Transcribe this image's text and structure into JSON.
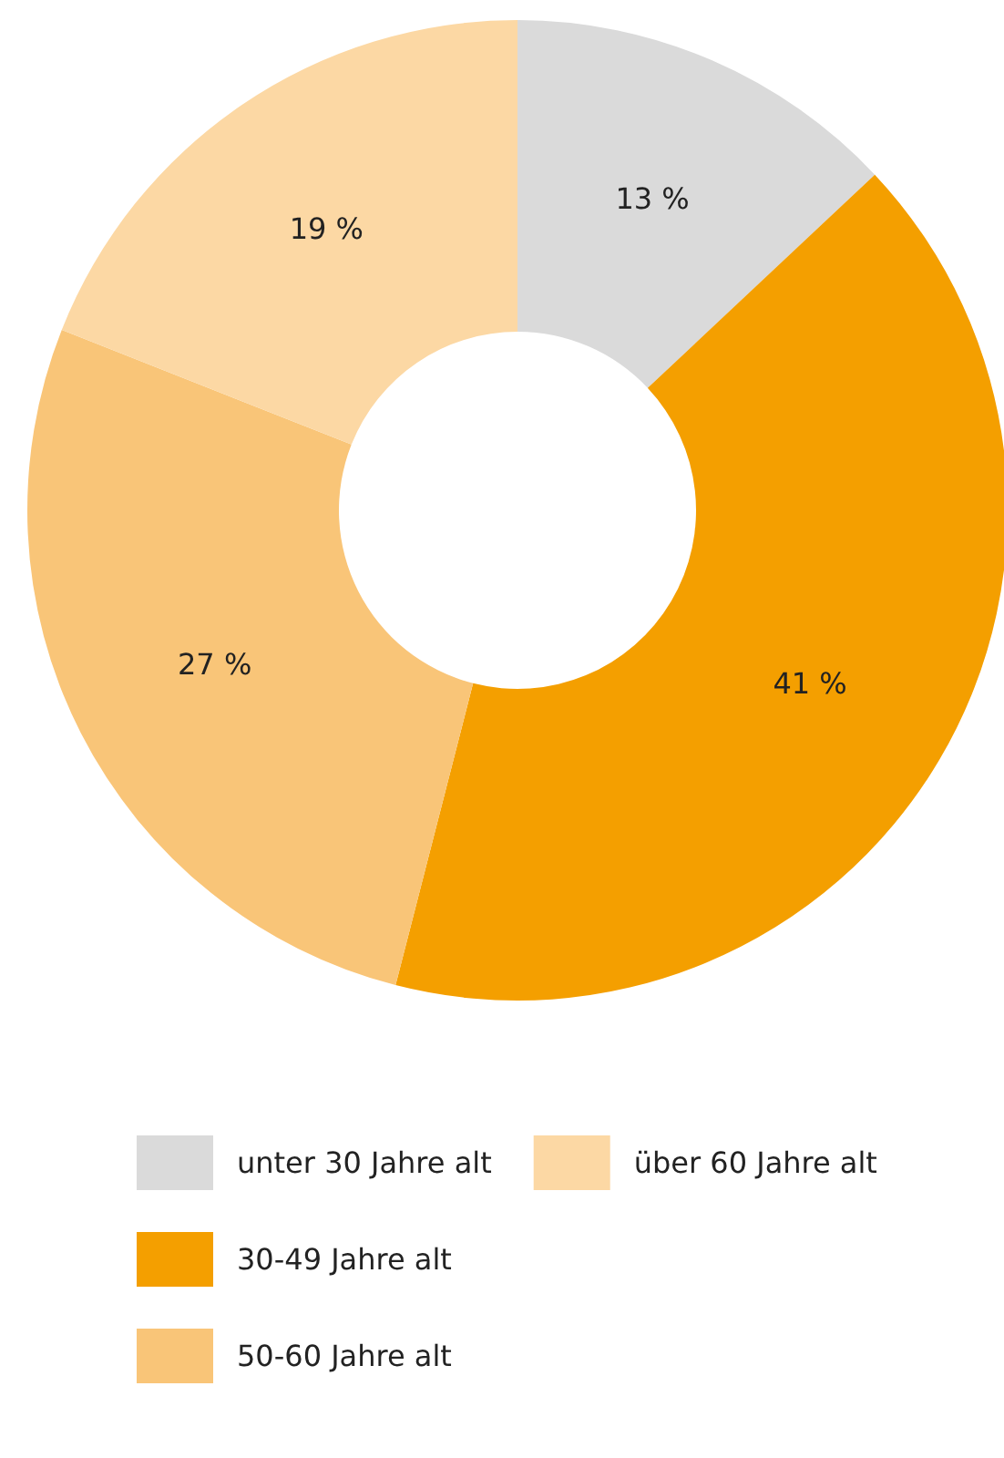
{
  "chart_data": {
    "type": "donut",
    "categories": [
      "unter 30 Jahre alt",
      "30-49 Jahre alt",
      "50-60 Jahre alt",
      "über 60 Jahre alt"
    ],
    "values": [
      13,
      41,
      27,
      19
    ],
    "colors": [
      "#dadada",
      "#f49f00",
      "#f9c578",
      "#fcd8a4"
    ],
    "value_labels": [
      "13 %",
      "41 %",
      "27 %",
      "19 %"
    ],
    "legend": "bottom left"
  }
}
